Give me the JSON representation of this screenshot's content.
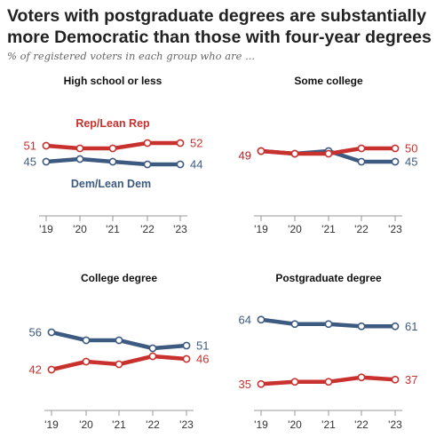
{
  "title": "Voters with postgraduate degrees are substantially more Democratic than those with four-year degrees",
  "subtitle": "% of registered voters in each group who are ...",
  "colors": {
    "rep": "#c8312e",
    "dem": "#3d5a80",
    "axis": "#999999",
    "tick_text": "#333333"
  },
  "chart_data": [
    {
      "type": "line",
      "title": "High school or less",
      "x": [
        "'19",
        "'20",
        "'21",
        "'22",
        "'23"
      ],
      "series": [
        {
          "name": "Rep/Lean Rep",
          "key": "rep",
          "values": [
            51,
            50,
            50,
            52,
            52
          ]
        },
        {
          "name": "Dem/Lean Dem",
          "key": "dem",
          "values": [
            45,
            46,
            45,
            44,
            44
          ]
        }
      ],
      "series_labels_shown": true
    },
    {
      "type": "line",
      "title": "Some college",
      "x": [
        "'19",
        "'20",
        "'21",
        "'22",
        "'23"
      ],
      "series": [
        {
          "name": "Rep/Lean Rep",
          "key": "rep",
          "values": [
            49,
            48,
            48,
            50,
            50
          ]
        },
        {
          "name": "Dem/Lean Dem",
          "key": "dem",
          "values": [
            49,
            48,
            49,
            45,
            45
          ]
        }
      ],
      "series_labels_shown": false
    },
    {
      "type": "line",
      "title": "College degree",
      "x": [
        "'19",
        "'20",
        "'21",
        "'22",
        "'23"
      ],
      "series": [
        {
          "name": "Rep/Lean Rep",
          "key": "rep",
          "values": [
            42,
            45,
            44,
            47,
            46
          ]
        },
        {
          "name": "Dem/Lean Dem",
          "key": "dem",
          "values": [
            56,
            53,
            53,
            50,
            51
          ]
        }
      ],
      "series_labels_shown": false
    },
    {
      "type": "line",
      "title": "Postgraduate degree",
      "x": [
        "'19",
        "'20",
        "'21",
        "'22",
        "'23"
      ],
      "series": [
        {
          "name": "Rep/Lean Rep",
          "key": "rep",
          "values": [
            35,
            36,
            36,
            38,
            37
          ]
        },
        {
          "name": "Dem/Lean Dem",
          "key": "dem",
          "values": [
            64,
            62,
            62,
            61,
            61
          ]
        }
      ],
      "series_labels_shown": false
    }
  ]
}
